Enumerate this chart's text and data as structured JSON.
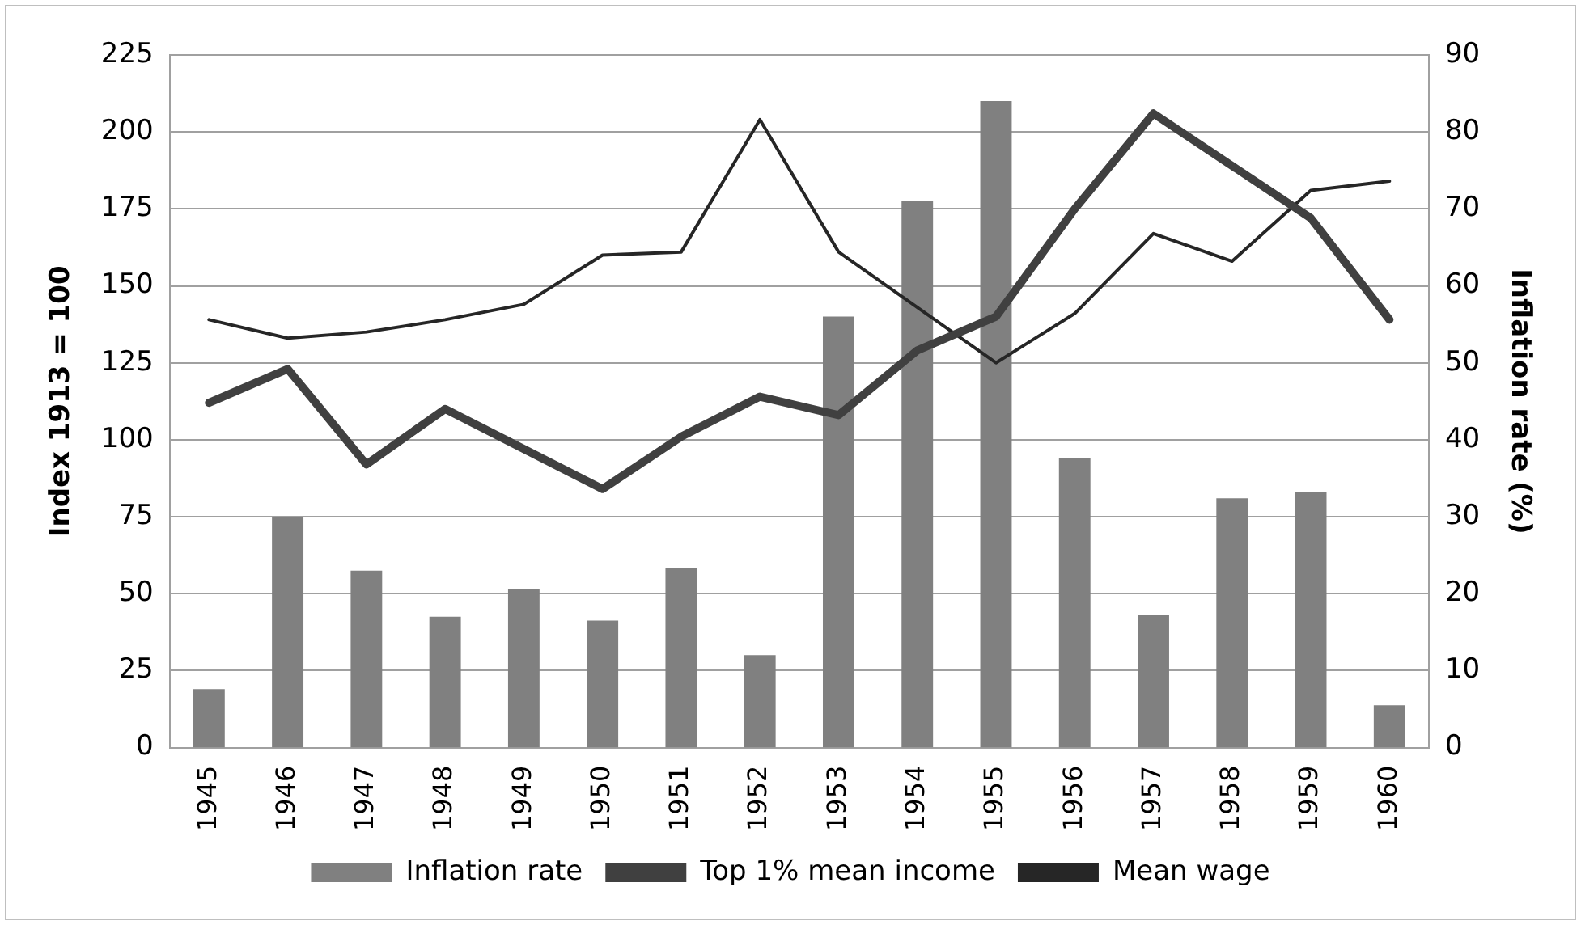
{
  "chart_data": {
    "type": "bar",
    "ylabel": "Index 1913 = 100",
    "y2label": "Inflation rate (%)",
    "categories": [
      "1945",
      "1946",
      "1947",
      "1948",
      "1949",
      "1950",
      "1951",
      "1952",
      "1953",
      "1954",
      "1955",
      "1956",
      "1957",
      "1958",
      "1959",
      "1960"
    ],
    "series": [
      {
        "name": "Inflation rate",
        "axis": "y2",
        "color": "#808080",
        "values": [
          7.6,
          30,
          23,
          17,
          20.6,
          16.5,
          23.3,
          12,
          56,
          71,
          84,
          37.6,
          17.3,
          32.4,
          33.2,
          5.5
        ]
      },
      {
        "name": "Top 1% mean income",
        "type": "line",
        "color": "#404040",
        "values": [
          112,
          123,
          92,
          110,
          97,
          84,
          101,
          114,
          108,
          129,
          140,
          175,
          206,
          189,
          172,
          139
        ]
      },
      {
        "name": "Mean wage",
        "type": "line",
        "color": "#262626",
        "values": [
          139,
          133,
          135,
          139,
          144,
          160,
          161,
          204,
          161,
          143,
          125,
          141,
          167,
          158,
          181,
          184
        ]
      }
    ],
    "ylim": [
      0,
      225
    ],
    "yticks": [
      0,
      25,
      50,
      75,
      100,
      125,
      150,
      175,
      200,
      225
    ],
    "y2lim": [
      0,
      90
    ],
    "y2ticks": [
      0,
      10,
      20,
      30,
      40,
      50,
      60,
      70,
      80,
      90
    ],
    "grid": "y",
    "legend": "bottom",
    "marker": "none"
  }
}
